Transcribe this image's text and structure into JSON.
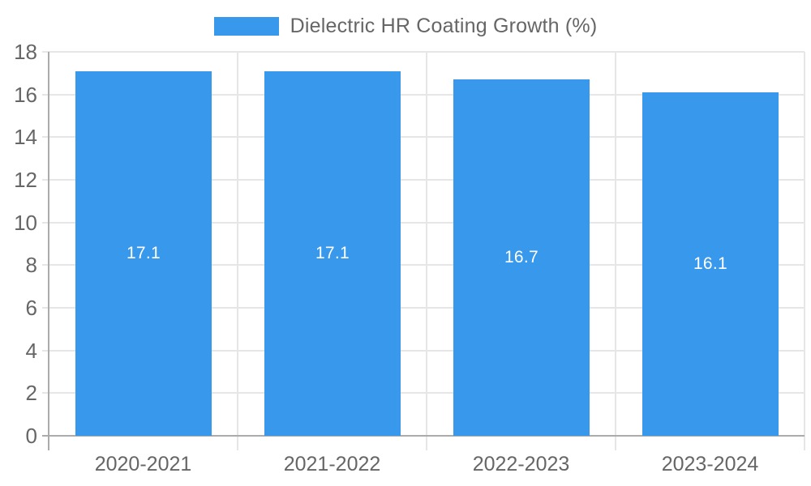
{
  "legend": {
    "label": "Dielectric HR Coating Growth (%)"
  },
  "chart_data": {
    "type": "bar",
    "title": "Dielectric HR Coating Growth (%)",
    "categories": [
      "2020-2021",
      "2021-2022",
      "2022-2023",
      "2023-2024"
    ],
    "values": [
      17.1,
      17.1,
      16.7,
      16.1
    ],
    "value_labels": [
      "17.1",
      "17.1",
      "16.7",
      "16.1"
    ],
    "xlabel": "",
    "ylabel": "",
    "ylim": [
      0,
      18
    ],
    "ytick_step": 2,
    "ytick_labels": [
      "0",
      "2",
      "4",
      "6",
      "8",
      "10",
      "12",
      "14",
      "16",
      "18"
    ],
    "grid": true,
    "legend_position": "top",
    "colors": {
      "bar": "#3898EC",
      "value_label": "#FFFFFF",
      "axis_text": "#666666",
      "gridline": "#E6E6E6",
      "axis_line": "#ABABAB"
    }
  }
}
